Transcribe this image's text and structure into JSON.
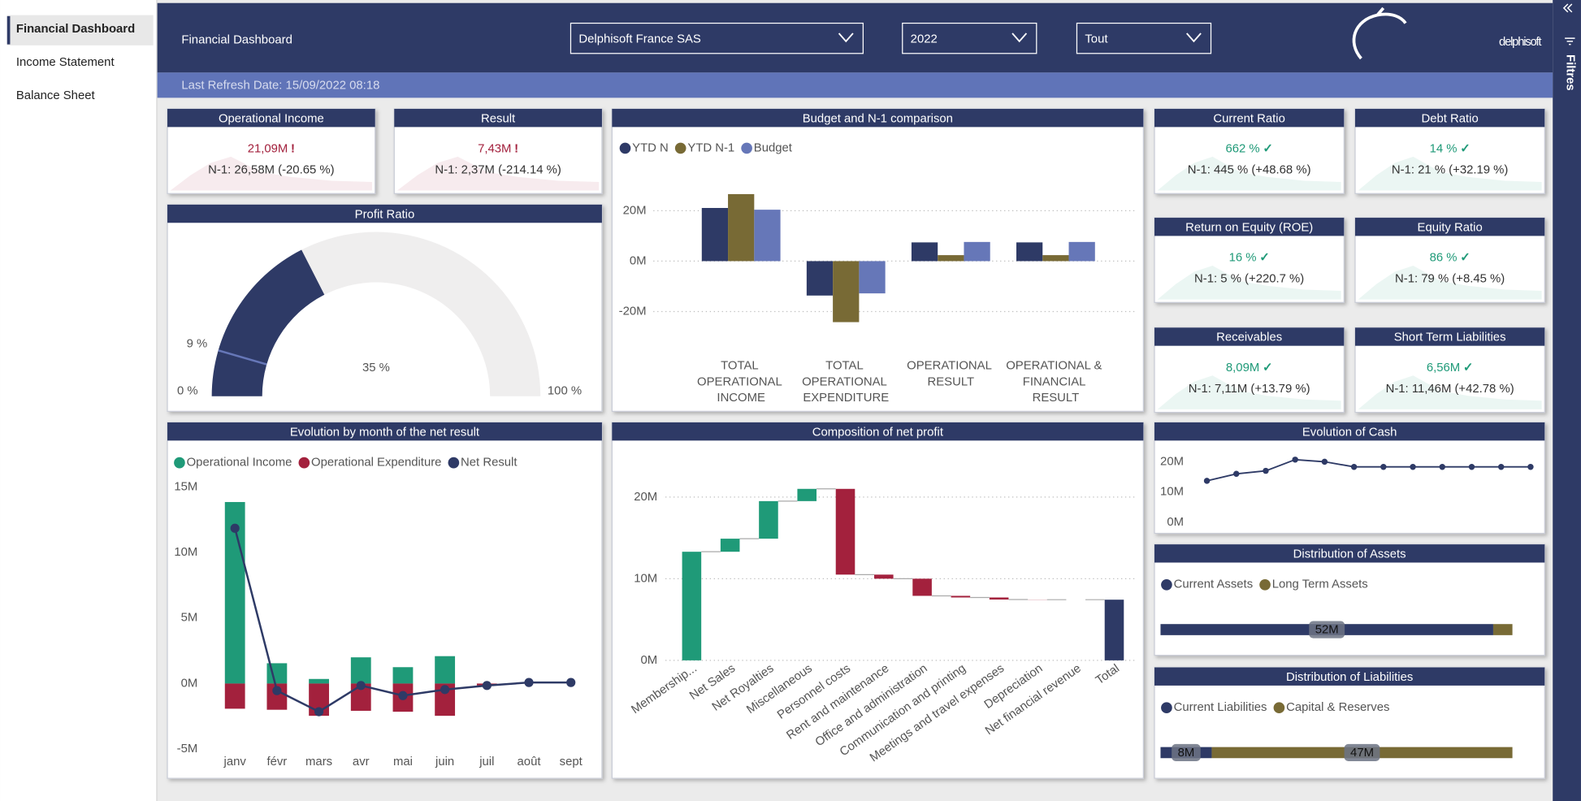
{
  "sidebar": {
    "items": [
      "Financial Dashboard",
      "Income Statement",
      "Balance Sheet"
    ],
    "selected": 0
  },
  "header": {
    "title": "Financial Dashboard",
    "filters": [
      "Delphisoft France SAS",
      "2022",
      "Tout"
    ],
    "logo": "delphisoft",
    "refresh_date": "Last Refresh Date: 15/09/2022 08:18"
  },
  "filter_pane": {
    "label": "Filtres"
  },
  "kpi_cards": [
    {
      "title": "Operational Income",
      "value": "21,09M",
      "indicator": "!",
      "comparison": "N-1: 26,58M (-20.65 %)",
      "color": "#a3213d"
    },
    {
      "title": "Result",
      "value": "7,43M",
      "indicator": "!",
      "comparison": "N-1: 2,37M (-214.14 %)",
      "color": "#a3213d"
    },
    {
      "title": "Current Ratio",
      "value": "662 %",
      "indicator": "✓",
      "comparison": "N-1: 445 % (+48.68 %)",
      "color": "#1f9a78"
    },
    {
      "title": "Debt Ratio",
      "value": "14 %",
      "indicator": "✓",
      "comparison": "N-1: 21 % (+32.19 %)",
      "color": "#1f9a78"
    },
    {
      "title": "Return on Equity (ROE)",
      "value": "16 %",
      "indicator": "✓",
      "comparison": "N-1: 5 % (+220.7 %)",
      "color": "#1f9a78"
    },
    {
      "title": "Equity Ratio",
      "value": "86 %",
      "indicator": "✓",
      "comparison": "N-1: 79 % (+8.45 %)",
      "color": "#1f9a78"
    },
    {
      "title": "Receivables",
      "value": "8,09M",
      "indicator": "✓",
      "comparison": "N-1: 7,11M (+13.79 %)",
      "color": "#1f9a78"
    },
    {
      "title": "Short Term Liabilities",
      "value": "6,56M",
      "indicator": "✓",
      "comparison": "N-1: 11,46M (+42.78 %)",
      "color": "#1f9a78"
    }
  ],
  "chart_data": [
    {
      "type": "gauge",
      "title": "Profit Ratio",
      "values": [
        35
      ],
      "value_labels": [
        "35 %"
      ],
      "ylim": [
        0,
        100
      ],
      "yticks": [
        {
          "value": 0,
          "label": "0 %"
        },
        {
          "value": 100,
          "label": "100 %"
        }
      ],
      "target": {
        "value": 9,
        "label": "9 %"
      },
      "color": "#2e3a66",
      "track_color": "#efeeee",
      "target_color": "#6677b8"
    },
    {
      "type": "bar",
      "title": "Budget and N-1 comparison",
      "categories": [
        "TOTAL OPERATIONAL INCOME",
        "TOTAL OPERATIONAL EXPENDITURE",
        "OPERATIONAL RESULT",
        "OPERATIONAL & FINANCIAL RESULT"
      ],
      "series": [
        {
          "name": "YTD N",
          "color": "#2e3a66",
          "values": [
            21.09,
            -13.66,
            7.43,
            7.43
          ]
        },
        {
          "name": "YTD N-1",
          "color": "#786a35",
          "values": [
            26.58,
            -24.21,
            2.37,
            2.37
          ]
        },
        {
          "name": "Budget",
          "color": "#6677b8",
          "values": [
            20.4,
            -12.8,
            7.6,
            7.6
          ]
        }
      ],
      "ylim": [
        -35,
        35
      ],
      "yticks": [
        {
          "value": -20,
          "label": "-20M"
        },
        {
          "value": 0,
          "label": "0M"
        },
        {
          "value": 20,
          "label": "20M"
        }
      ],
      "grid": true
    },
    {
      "type": "combo",
      "title": "Evolution by month of the net result",
      "categories": [
        "janv",
        "févr",
        "mars",
        "avr",
        "mai",
        "juin",
        "juil",
        "août",
        "sept"
      ],
      "series": [
        {
          "name": "Operational Income",
          "color": "#1f9a78",
          "kind": "bar",
          "values": [
            13.85,
            1.55,
            0.35,
            2.0,
            1.25,
            2.09,
            0,
            0,
            0
          ]
        },
        {
          "name": "Operational Expenditure",
          "color": "#a3213d",
          "kind": "bar",
          "values": [
            -1.92,
            -2.0,
            -2.46,
            -2.08,
            -2.15,
            -2.46,
            -0.15,
            0,
            0
          ]
        },
        {
          "name": "Net Result",
          "color": "#2e3a66",
          "kind": "line",
          "values": [
            11.85,
            -0.54,
            -2.15,
            -0.15,
            -0.92,
            -0.46,
            -0.15,
            0.08,
            0.08
          ]
        }
      ],
      "ylim": [
        -5,
        15
      ],
      "yticks": [
        {
          "value": -5,
          "label": "-5M"
        },
        {
          "value": 0,
          "label": "0M"
        },
        {
          "value": 5,
          "label": "5M"
        },
        {
          "value": 10,
          "label": "10M"
        },
        {
          "value": 15,
          "label": "15M"
        }
      ],
      "grid": false
    },
    {
      "type": "waterfall",
      "title": "Composition of net profit",
      "categories": [
        "Membership...",
        "Net Sales",
        "Net Royalties",
        "Miscellaneous",
        "Personnel costs",
        "Rent and maintenance",
        "Office and administration",
        "Communication and printing",
        "Meetings and travel expenses",
        "Depreciation",
        "Net financial revenue",
        "Total"
      ],
      "values": [
        13.3,
        1.6,
        4.6,
        1.5,
        -10.5,
        -0.5,
        -2.1,
        -0.2,
        -0.25,
        -0.02,
        0,
        7.43
      ],
      "measure": [
        "relative",
        "relative",
        "relative",
        "relative",
        "relative",
        "relative",
        "relative",
        "relative",
        "relative",
        "relative",
        "relative",
        "total"
      ],
      "colors": {
        "increase": "#1f9a78",
        "decrease": "#a3213d",
        "total": "#2e3a66"
      },
      "ylim": [
        0,
        23
      ],
      "yticks": [
        {
          "value": 0,
          "label": "0M"
        },
        {
          "value": 10,
          "label": "10M"
        },
        {
          "value": 20,
          "label": "20M"
        }
      ],
      "grid": true
    },
    {
      "type": "line",
      "title": "Evolution of Cash",
      "categories": [
        null,
        null,
        null,
        null,
        null,
        null,
        null,
        null,
        null,
        null,
        null,
        null
      ],
      "values": [
        13.7,
        16,
        17,
        20.7,
        20,
        18.3,
        18.3,
        18.3,
        18.3,
        18.3,
        18.3,
        18.3
      ],
      "color": "#2e3a66",
      "ylim": [
        0,
        24
      ],
      "yticks": [
        {
          "value": 0,
          "label": "0M"
        },
        {
          "value": 10,
          "label": "10M"
        },
        {
          "value": 20,
          "label": "20M"
        }
      ],
      "grid": false
    },
    {
      "type": "stacked_bar",
      "orientation": "horizontal",
      "title": "Distribution of Assets",
      "series": [
        {
          "name": "Current Assets",
          "color": "#2e3a66",
          "values": [
            52
          ],
          "value_labels": [
            "52M"
          ]
        },
        {
          "name": "Long Term Assets",
          "color": "#786a35",
          "values": [
            3
          ]
        }
      ],
      "xlim": [
        0,
        55
      ]
    },
    {
      "type": "stacked_bar",
      "orientation": "horizontal",
      "title": "Distribution of Liabilities",
      "series": [
        {
          "name": "Current Liabilities",
          "color": "#2e3a66",
          "values": [
            8
          ],
          "value_labels": [
            "8M"
          ]
        },
        {
          "name": "Capital & Reserves",
          "color": "#786a35",
          "values": [
            47
          ],
          "value_labels": [
            "47M"
          ]
        }
      ],
      "xlim": [
        0,
        55
      ]
    }
  ]
}
